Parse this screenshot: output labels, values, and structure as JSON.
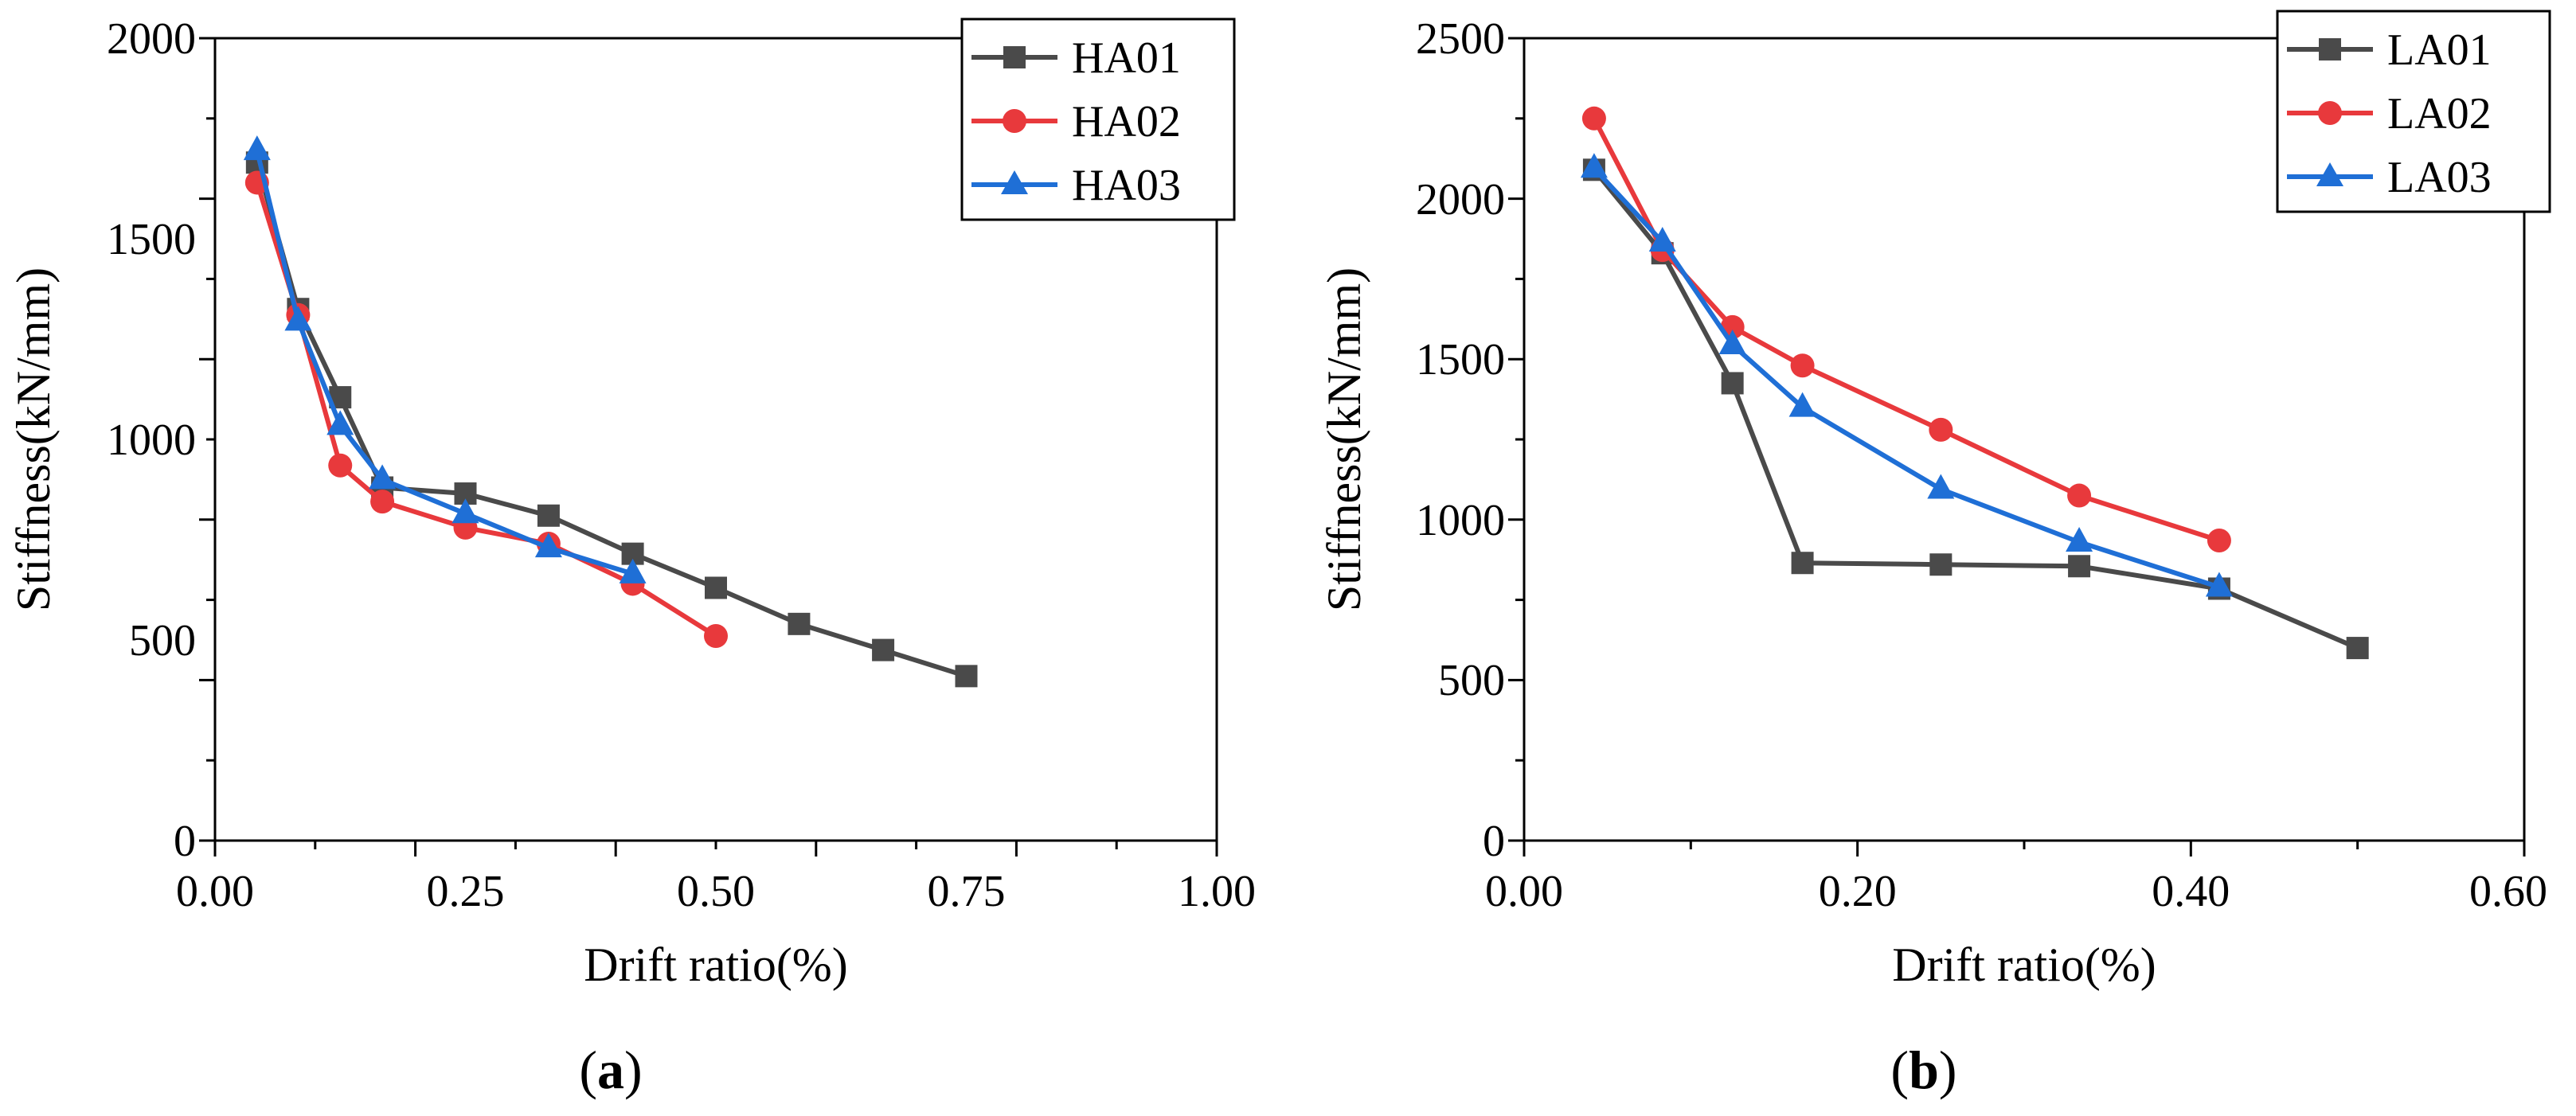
{
  "chart_data": [
    {
      "type": "line",
      "panel_label": "a",
      "xlabel": "Drift ratio(%)",
      "ylabel": "Stiffness(kN/mm)",
      "xlim": [
        0,
        1.0
      ],
      "ylim": [
        0,
        2000
      ],
      "xticks": [
        "0.00",
        "0.25",
        "0.50",
        "0.75",
        "1.00"
      ],
      "yticks": [
        "0",
        "500",
        "1000",
        "1500",
        "2000"
      ],
      "legend_position": "top-right",
      "series": [
        {
          "name": "HA01",
          "color": "#4a4a4a",
          "marker": "square",
          "x": [
            0.042,
            0.083,
            0.125,
            0.167,
            0.25,
            0.333,
            0.417,
            0.5,
            0.583,
            0.667,
            0.75
          ],
          "y": [
            1690,
            1325,
            1105,
            880,
            865,
            810,
            715,
            630,
            540,
            475,
            410
          ]
        },
        {
          "name": "HA02",
          "color": "#e8393c",
          "marker": "circle",
          "x": [
            0.042,
            0.083,
            0.125,
            0.167,
            0.25,
            0.333,
            0.417,
            0.5
          ],
          "y": [
            1640,
            1310,
            935,
            845,
            780,
            740,
            640,
            510
          ]
        },
        {
          "name": "HA03",
          "color": "#1f6fd6",
          "marker": "triangle",
          "x": [
            0.042,
            0.083,
            0.125,
            0.167,
            0.25,
            0.333,
            0.417
          ],
          "y": [
            1720,
            1295,
            1035,
            900,
            815,
            730,
            665
          ]
        }
      ]
    },
    {
      "type": "line",
      "panel_label": "b",
      "xlabel": "Drift ratio(%)",
      "ylabel": "Stiffness(kN/mm)",
      "xlim": [
        0,
        0.6
      ],
      "ylim": [
        0,
        2500
      ],
      "xticks": [
        "0.00",
        "0.20",
        "0.40",
        "0.60"
      ],
      "yticks": [
        "0",
        "500",
        "1000",
        "1500",
        "2000",
        "2500"
      ],
      "legend_position": "top-right",
      "series": [
        {
          "name": "LA01",
          "color": "#4a4a4a",
          "marker": "square",
          "x": [
            0.042,
            0.083,
            0.125,
            0.167,
            0.25,
            0.333,
            0.417,
            0.5
          ],
          "y": [
            2090,
            1830,
            1425,
            865,
            860,
            855,
            785,
            600
          ]
        },
        {
          "name": "LA02",
          "color": "#e8393c",
          "marker": "circle",
          "x": [
            0.042,
            0.083,
            0.125,
            0.167,
            0.25,
            0.333,
            0.417
          ],
          "y": [
            2250,
            1840,
            1600,
            1480,
            1280,
            1075,
            935
          ]
        },
        {
          "name": "LA03",
          "color": "#1f6fd6",
          "marker": "triangle",
          "x": [
            0.042,
            0.083,
            0.125,
            0.167,
            0.25,
            0.333,
            0.417
          ],
          "y": [
            2095,
            1865,
            1545,
            1350,
            1095,
            930,
            790
          ]
        }
      ]
    }
  ],
  "captions": [
    {
      "open": "(",
      "letter": "a",
      "close": ")"
    },
    {
      "open": "(",
      "letter": "b",
      "close": ")"
    }
  ]
}
